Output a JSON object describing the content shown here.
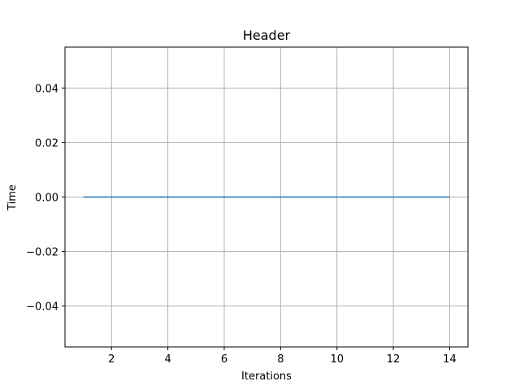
{
  "chart_data": {
    "type": "line",
    "title": "Header",
    "xlabel": "Iterations",
    "ylabel": "Time",
    "xlim": [
      0.35,
      14.65
    ],
    "ylim": [
      -0.055,
      0.055
    ],
    "xticks": [
      2,
      4,
      6,
      8,
      10,
      12,
      14
    ],
    "xtick_labels": [
      "2",
      "4",
      "6",
      "8",
      "10",
      "12",
      "14"
    ],
    "yticks": [
      -0.04,
      -0.02,
      0.0,
      0.02,
      0.04
    ],
    "ytick_labels": [
      "−0.04",
      "−0.02",
      "0.00",
      "0.02",
      "0.04"
    ],
    "grid": true,
    "series": [
      {
        "color": "#1f77b4",
        "x": [
          1,
          2,
          3,
          4,
          5,
          6,
          7,
          8,
          9,
          10,
          11,
          12,
          13,
          14
        ],
        "y": [
          0,
          0,
          0,
          0,
          0,
          0,
          0,
          0,
          0,
          0,
          0,
          0,
          0,
          0
        ]
      }
    ]
  }
}
